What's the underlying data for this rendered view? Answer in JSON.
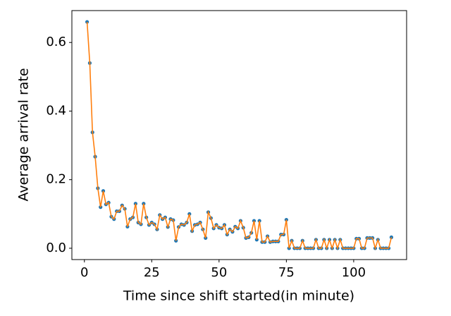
{
  "chart_data": {
    "type": "line",
    "markers": true,
    "x_label": "Time since shift started(in minute)",
    "y_label": "Average arrival rate",
    "x": [
      1,
      2,
      3,
      4,
      5,
      6,
      7,
      8,
      9,
      10,
      11,
      12,
      13,
      14,
      15,
      16,
      17,
      18,
      19,
      20,
      21,
      22,
      23,
      24,
      25,
      26,
      27,
      28,
      29,
      30,
      31,
      32,
      33,
      34,
      35,
      36,
      37,
      38,
      39,
      40,
      41,
      42,
      43,
      44,
      45,
      46,
      47,
      48,
      49,
      50,
      51,
      52,
      53,
      54,
      55,
      56,
      57,
      58,
      59,
      60,
      61,
      62,
      63,
      64,
      65,
      66,
      67,
      68,
      69,
      70,
      71,
      72,
      73,
      74,
      75,
      76,
      77,
      78,
      79,
      80,
      81,
      82,
      83,
      84,
      85,
      86,
      87,
      88,
      89,
      90,
      91,
      92,
      93,
      94,
      95,
      96,
      97,
      98,
      99,
      100,
      101,
      102,
      103,
      104,
      105,
      106,
      107,
      108,
      109,
      110,
      111,
      112,
      113,
      114
    ],
    "series": [
      {
        "color": "#ff7f0e",
        "marker_color": "#1f77b4",
        "values": [
          0.66,
          0.54,
          0.338,
          0.267,
          0.175,
          0.12,
          0.167,
          0.128,
          0.133,
          0.092,
          0.085,
          0.108,
          0.108,
          0.125,
          0.115,
          0.063,
          0.085,
          0.09,
          0.13,
          0.075,
          0.07,
          0.13,
          0.09,
          0.068,
          0.075,
          0.07,
          0.055,
          0.097,
          0.085,
          0.09,
          0.062,
          0.085,
          0.082,
          0.022,
          0.062,
          0.07,
          0.068,
          0.075,
          0.1,
          0.05,
          0.068,
          0.07,
          0.075,
          0.055,
          0.03,
          0.105,
          0.088,
          0.058,
          0.068,
          0.06,
          0.058,
          0.068,
          0.04,
          0.055,
          0.048,
          0.063,
          0.058,
          0.08,
          0.06,
          0.03,
          0.032,
          0.045,
          0.08,
          0.025,
          0.08,
          0.018,
          0.018,
          0.035,
          0.018,
          0.02,
          0.02,
          0.02,
          0.04,
          0.04,
          0.083,
          0,
          0.022,
          0,
          0,
          0,
          0.022,
          0,
          0,
          0,
          0,
          0.025,
          0,
          0,
          0.025,
          0,
          0.025,
          0,
          0.025,
          0,
          0.025,
          0,
          0,
          0,
          0,
          0,
          0.028,
          0.028,
          0,
          0,
          0.03,
          0.03,
          0.03,
          0,
          0.025,
          0,
          0,
          0,
          0,
          0.032
        ]
      }
    ],
    "xlim": [
      -4.65,
      119.65
    ],
    "xticks": [
      0,
      25,
      50,
      75,
      100
    ],
    "ylim": [
      -0.033,
      0.693
    ],
    "yticks": [
      {
        "value": 0,
        "label": "0.0"
      },
      0.2,
      0.4,
      0.6
    ]
  }
}
